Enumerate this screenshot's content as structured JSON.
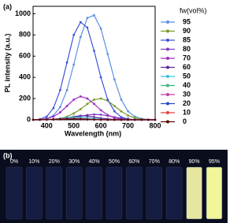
{
  "chart_data": {
    "type": "line",
    "panel_label": "(a)",
    "x_label": "Wavelength (nm)",
    "y_label": "PL intensity (a.u.)",
    "legend_title": "fw(vol%)",
    "x": [
      350,
      375,
      400,
      425,
      450,
      475,
      500,
      525,
      550,
      575,
      600,
      625,
      650,
      675,
      700,
      725,
      750,
      775,
      800
    ],
    "xlim": [
      350,
      800
    ],
    "xticks": [
      400,
      500,
      600,
      700,
      800
    ],
    "ylim": [
      0,
      1070
    ],
    "yticks": [
      0,
      200,
      400,
      600,
      800,
      1000
    ],
    "series": [
      {
        "name": "95",
        "color": "#5b8fe6",
        "values": [
          0,
          2,
          10,
          40,
          120,
          280,
          520,
          780,
          960,
          985,
          860,
          620,
          380,
          190,
          80,
          30,
          10,
          3,
          0
        ]
      },
      {
        "name": "90",
        "color": "#7a9a2a",
        "values": [
          0,
          0,
          2,
          5,
          12,
          30,
          60,
          100,
          150,
          190,
          200,
          180,
          130,
          80,
          40,
          18,
          6,
          2,
          0
        ]
      },
      {
        "name": "85",
        "color": "#3f55d8",
        "values": [
          0,
          5,
          30,
          110,
          280,
          540,
          800,
          920,
          870,
          650,
          400,
          190,
          80,
          25,
          8,
          2,
          0,
          0,
          0
        ]
      },
      {
        "name": "80",
        "color": "#7b3fc0",
        "values": [
          0,
          0,
          1,
          2,
          5,
          10,
          20,
          32,
          45,
          50,
          48,
          38,
          25,
          14,
          6,
          2,
          1,
          0,
          0
        ]
      },
      {
        "name": "70",
        "color": "#a02fc4",
        "values": [
          0,
          2,
          10,
          30,
          70,
          130,
          190,
          220,
          200,
          150,
          90,
          45,
          18,
          6,
          2,
          0,
          0,
          0,
          0
        ]
      },
      {
        "name": "60",
        "color": "#5a2a9a",
        "values": [
          0,
          0,
          2,
          5,
          10,
          18,
          30,
          38,
          35,
          25,
          15,
          8,
          4,
          2,
          1,
          0,
          0,
          0,
          0
        ]
      },
      {
        "name": "50",
        "color": "#3cc0de",
        "values": [
          0,
          1,
          3,
          6,
          12,
          20,
          25,
          22,
          16,
          10,
          5,
          2,
          1,
          0,
          0,
          0,
          0,
          0,
          0
        ]
      },
      {
        "name": "40",
        "color": "#3cb77a",
        "values": [
          0,
          1,
          3,
          6,
          10,
          14,
          15,
          12,
          8,
          5,
          2,
          1,
          0,
          0,
          0,
          0,
          0,
          0,
          0
        ]
      },
      {
        "name": "30",
        "color": "#c03ca0",
        "values": [
          0,
          1,
          2,
          5,
          8,
          12,
          12,
          10,
          6,
          3,
          1,
          0,
          0,
          0,
          0,
          0,
          0,
          0,
          0
        ]
      },
      {
        "name": "20",
        "color": "#2a46c0",
        "values": [
          0,
          1,
          2,
          4,
          7,
          10,
          10,
          8,
          5,
          2,
          1,
          0,
          0,
          0,
          0,
          0,
          0,
          0,
          0
        ]
      },
      {
        "name": "10",
        "color": "#e04040",
        "values": [
          0,
          1,
          2,
          4,
          6,
          8,
          8,
          6,
          4,
          2,
          1,
          0,
          0,
          0,
          0,
          0,
          0,
          0,
          0
        ]
      },
      {
        "name": "0",
        "color": "#5a0a0a",
        "values": [
          0,
          1,
          2,
          3,
          5,
          6,
          6,
          5,
          3,
          2,
          1,
          0,
          0,
          0,
          0,
          0,
          0,
          0,
          0
        ]
      }
    ]
  },
  "photo": {
    "panel_label": "(b)",
    "vial_labels": [
      "0%",
      "10%",
      "20%",
      "30%",
      "40%",
      "50%",
      "60%",
      "70%",
      "80%",
      "90%",
      "95%"
    ]
  }
}
